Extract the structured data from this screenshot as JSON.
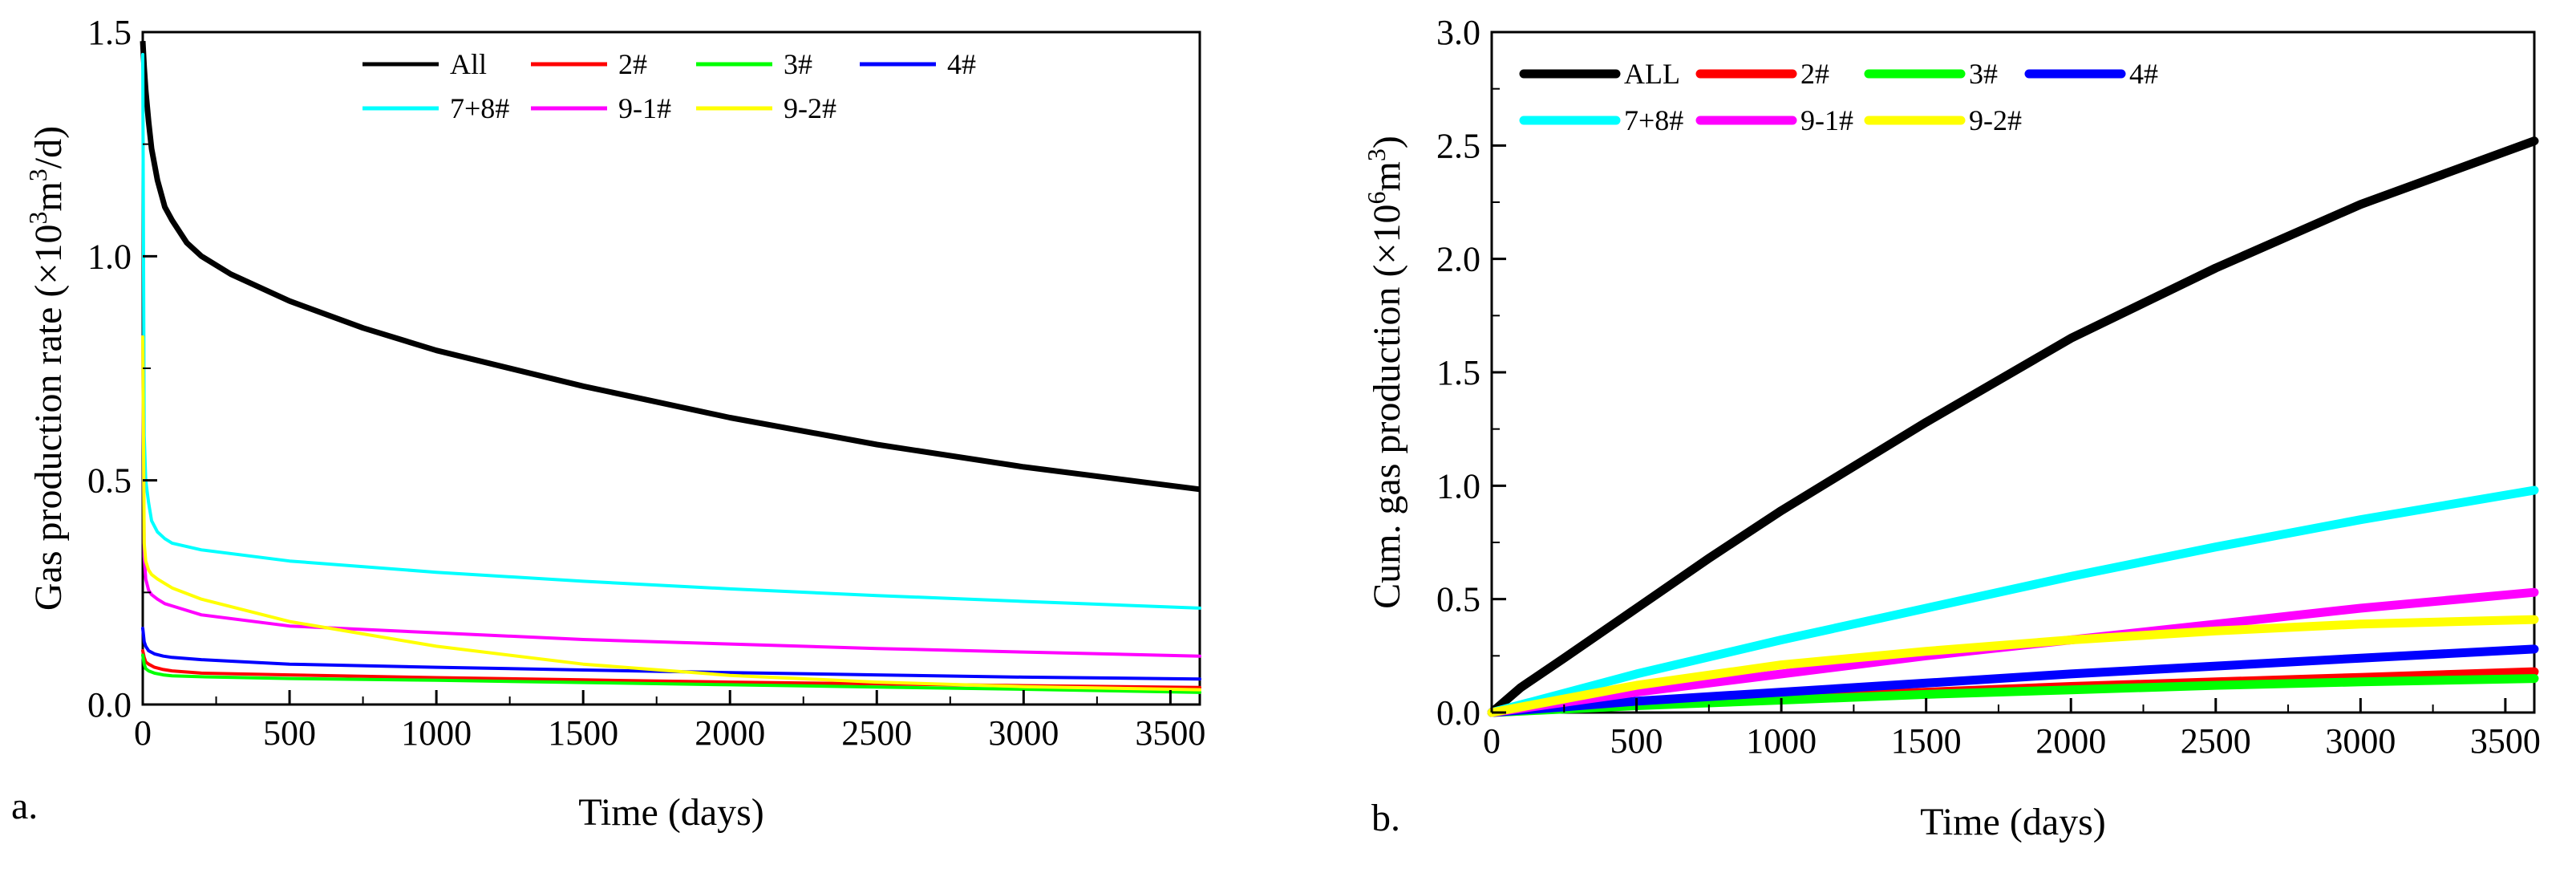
{
  "chart_data": [
    {
      "type": "line",
      "panel_label": "a.",
      "xlabel": "Time (days)",
      "ylabel": {
        "prefix": "Gas production rate (×10",
        "sup": "3",
        "mid": "m",
        "sup2": "3",
        "suffix": "/d)"
      },
      "xlim": [
        0,
        3600
      ],
      "ylim": [
        0,
        1.5
      ],
      "xticks": [
        0,
        500,
        1000,
        1500,
        2000,
        2500,
        3000,
        3500
      ],
      "yticks": [
        0.0,
        0.5,
        1.0,
        1.5
      ],
      "ytick_labels": [
        "0.0",
        "0.5",
        "1.0",
        "1.5"
      ],
      "legend_placement": "top-center",
      "legend_rows": [
        [
          "All",
          "2#",
          "3#",
          "4#"
        ],
        [
          "7+8#",
          "9-1#",
          "9-2#"
        ]
      ],
      "series": [
        {
          "name": "All",
          "color": "#000000",
          "x": [
            0,
            5,
            10,
            20,
            30,
            50,
            75,
            100,
            150,
            200,
            300,
            500,
            750,
            1000,
            1500,
            2000,
            2500,
            3000,
            3600
          ],
          "values": [
            1.48,
            1.42,
            1.37,
            1.3,
            1.24,
            1.17,
            1.11,
            1.08,
            1.03,
            1.0,
            0.96,
            0.9,
            0.84,
            0.79,
            0.71,
            0.64,
            0.58,
            0.53,
            0.48
          ]
        },
        {
          "name": "2#",
          "color": "#ff0000",
          "x": [
            0,
            5,
            10,
            20,
            40,
            70,
            100,
            200,
            500,
            1000,
            1500,
            2000,
            2500,
            3000,
            3600
          ],
          "values": [
            0.12,
            0.105,
            0.095,
            0.09,
            0.083,
            0.078,
            0.075,
            0.07,
            0.066,
            0.06,
            0.055,
            0.05,
            0.046,
            0.042,
            0.038
          ]
        },
        {
          "name": "3#",
          "color": "#00ff00",
          "x": [
            0,
            5,
            10,
            20,
            40,
            70,
            100,
            200,
            500,
            1000,
            1500,
            2000,
            2500,
            3000,
            3600
          ],
          "values": [
            0.11,
            0.09,
            0.08,
            0.075,
            0.07,
            0.066,
            0.064,
            0.062,
            0.058,
            0.054,
            0.049,
            0.044,
            0.039,
            0.034,
            0.027
          ]
        },
        {
          "name": "4#",
          "color": "#0000ff",
          "x": [
            0,
            5,
            10,
            20,
            40,
            70,
            100,
            200,
            500,
            1000,
            1500,
            2000,
            2500,
            3000,
            3600
          ],
          "values": [
            0.17,
            0.14,
            0.13,
            0.12,
            0.113,
            0.108,
            0.105,
            0.1,
            0.09,
            0.083,
            0.077,
            0.071,
            0.066,
            0.061,
            0.057
          ]
        },
        {
          "name": "7+8#",
          "color": "#00ffff",
          "x": [
            0,
            5,
            10,
            20,
            30,
            50,
            75,
            100,
            200,
            500,
            1000,
            1500,
            2000,
            2500,
            3000,
            3600
          ],
          "values": [
            1.45,
            0.6,
            0.5,
            0.45,
            0.41,
            0.385,
            0.37,
            0.36,
            0.345,
            0.32,
            0.295,
            0.275,
            0.258,
            0.243,
            0.23,
            0.215
          ]
        },
        {
          "name": "9-1#",
          "color": "#ff00ff",
          "x": [
            0,
            5,
            10,
            20,
            30,
            50,
            75,
            100,
            200,
            500,
            1000,
            1500,
            2000,
            2500,
            3000,
            3600
          ],
          "values": [
            0.82,
            0.33,
            0.28,
            0.255,
            0.245,
            0.235,
            0.225,
            0.22,
            0.2,
            0.175,
            0.16,
            0.145,
            0.135,
            0.125,
            0.117,
            0.108
          ]
        },
        {
          "name": "9-2#",
          "color": "#ffff00",
          "x": [
            0,
            5,
            10,
            20,
            30,
            50,
            75,
            100,
            200,
            500,
            1000,
            1500,
            2000,
            2500,
            3000,
            3600
          ],
          "values": [
            0.82,
            0.36,
            0.32,
            0.3,
            0.29,
            0.28,
            0.27,
            0.26,
            0.235,
            0.185,
            0.13,
            0.09,
            0.065,
            0.05,
            0.04,
            0.033
          ]
        }
      ]
    },
    {
      "type": "line",
      "panel_label": "b.",
      "xlabel": "Time (days)",
      "ylabel": {
        "prefix": "Cum. gas production (×10",
        "sup": "6",
        "mid": "m",
        "sup2": "3",
        "suffix": ")"
      },
      "xlim": [
        0,
        3600
      ],
      "ylim": [
        0,
        3.0
      ],
      "xticks": [
        0,
        500,
        1000,
        1500,
        2000,
        2500,
        3000,
        3500
      ],
      "yticks": [
        0.0,
        0.5,
        1.0,
        1.5,
        2.0,
        2.5,
        3.0
      ],
      "ytick_labels": [
        "0.0",
        "0.5",
        "1.0",
        "1.5",
        "2.0",
        "2.5",
        "3.0"
      ],
      "legend_placement": "top-left",
      "legend_rows": [
        [
          "ALL",
          "2#",
          "3#",
          "4#"
        ],
        [
          "7+8#",
          "9-1#",
          "9-2#"
        ]
      ],
      "series": [
        {
          "name": "ALL",
          "color": "#000000",
          "x": [
            0,
            100,
            250,
            500,
            750,
            1000,
            1500,
            2000,
            2500,
            3000,
            3600
          ],
          "values": [
            0,
            0.11,
            0.24,
            0.46,
            0.68,
            0.89,
            1.28,
            1.65,
            1.96,
            2.24,
            2.52
          ]
        },
        {
          "name": "2#",
          "color": "#ff0000",
          "x": [
            0,
            500,
            1000,
            1500,
            2000,
            2500,
            3000,
            3600
          ],
          "values": [
            0,
            0.035,
            0.065,
            0.09,
            0.115,
            0.135,
            0.155,
            0.18
          ]
        },
        {
          "name": "3#",
          "color": "#00ff00",
          "x": [
            0,
            500,
            1000,
            1500,
            2000,
            2500,
            3000,
            3600
          ],
          "values": [
            0,
            0.03,
            0.055,
            0.08,
            0.1,
            0.12,
            0.135,
            0.15
          ]
        },
        {
          "name": "4#",
          "color": "#0000ff",
          "x": [
            0,
            500,
            1000,
            1500,
            2000,
            2500,
            3000,
            3600
          ],
          "values": [
            0,
            0.05,
            0.09,
            0.13,
            0.17,
            0.205,
            0.24,
            0.28
          ]
        },
        {
          "name": "7+8#",
          "color": "#00ffff",
          "x": [
            0,
            500,
            1000,
            1500,
            2000,
            2500,
            3000,
            3600
          ],
          "values": [
            0,
            0.17,
            0.32,
            0.46,
            0.6,
            0.73,
            0.85,
            0.98
          ]
        },
        {
          "name": "9-1#",
          "color": "#ff00ff",
          "x": [
            0,
            500,
            1000,
            1500,
            2000,
            2500,
            3000,
            3600
          ],
          "values": [
            0,
            0.09,
            0.17,
            0.25,
            0.32,
            0.39,
            0.46,
            0.53
          ]
        },
        {
          "name": "9-2#",
          "color": "#ffff00",
          "x": [
            0,
            500,
            1000,
            1500,
            2000,
            2500,
            3000,
            3600
          ],
          "values": [
            0,
            0.12,
            0.21,
            0.27,
            0.32,
            0.36,
            0.39,
            0.41
          ]
        }
      ]
    }
  ]
}
